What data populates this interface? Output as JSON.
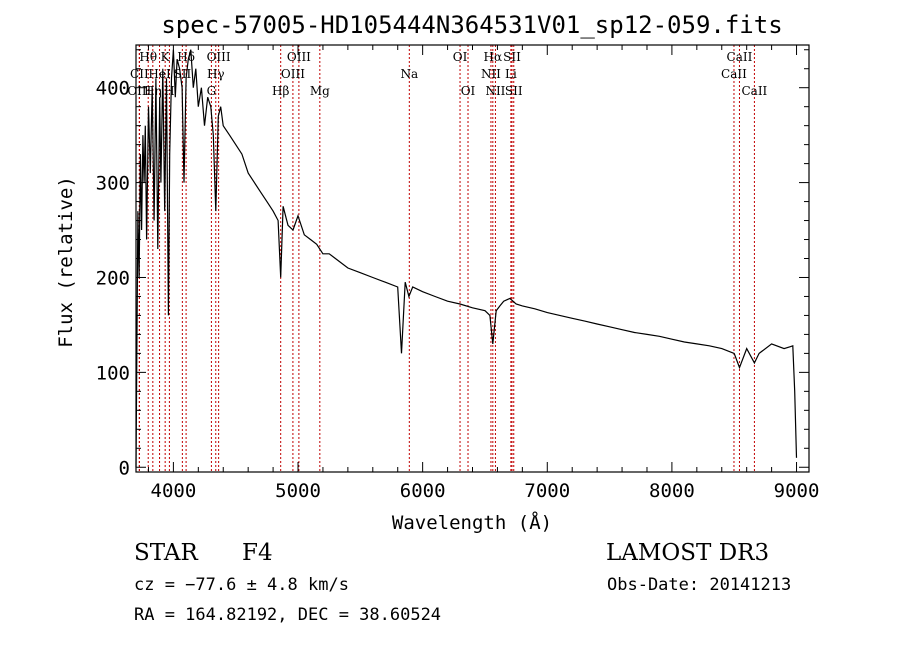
{
  "chart_data": {
    "type": "line",
    "title": "spec-57005-HD105444N364531V01_sp12-059.fits",
    "xlabel": "Wavelength (Å)",
    "ylabel": "Flux (relative)",
    "xlim": [
      3700,
      9100
    ],
    "ylim": [
      -5,
      445
    ],
    "x_ticks": [
      4000,
      5000,
      6000,
      7000,
      8000,
      9000
    ],
    "y_ticks": [
      0,
      100,
      200,
      300,
      400
    ],
    "series": [
      {
        "name": "flux",
        "x": [
          3700,
          3715,
          3725,
          3735,
          3745,
          3755,
          3765,
          3775,
          3785,
          3800,
          3815,
          3830,
          3845,
          3860,
          3875,
          3890,
          3900,
          3915,
          3930,
          3945,
          3960,
          3970,
          3985,
          4000,
          4015,
          4030,
          4050,
          4070,
          4085,
          4102,
          4120,
          4140,
          4160,
          4180,
          4200,
          4225,
          4250,
          4275,
          4300,
          4320,
          4340,
          4360,
          4380,
          4400,
          4450,
          4500,
          4550,
          4600,
          4650,
          4700,
          4750,
          4800,
          4840,
          4861,
          4880,
          4920,
          4960,
          5000,
          5050,
          5100,
          5150,
          5200,
          5250,
          5300,
          5400,
          5500,
          5600,
          5700,
          5800,
          5830,
          5860,
          5890,
          5920,
          6000,
          6100,
          6200,
          6300,
          6400,
          6500,
          6540,
          6563,
          6590,
          6620,
          6650,
          6700,
          6750,
          6800,
          6900,
          7000,
          7100,
          7200,
          7300,
          7400,
          7500,
          7600,
          7700,
          7800,
          7900,
          8000,
          8100,
          8200,
          8300,
          8400,
          8500,
          8542,
          8600,
          8662,
          8700,
          8800,
          8900,
          8950,
          8970,
          8985,
          9000
        ],
        "y": [
          0,
          270,
          200,
          330,
          250,
          350,
          300,
          360,
          240,
          380,
          310,
          400,
          260,
          410,
          230,
          390,
          300,
          420,
          270,
          410,
          160,
          330,
          410,
          440,
          390,
          430,
          420,
          400,
          300,
          410,
          430,
          440,
          400,
          420,
          380,
          400,
          360,
          390,
          380,
          350,
          270,
          370,
          380,
          360,
          350,
          340,
          330,
          310,
          300,
          290,
          280,
          270,
          260,
          200,
          275,
          255,
          250,
          265,
          245,
          240,
          235,
          225,
          225,
          220,
          210,
          205,
          200,
          195,
          190,
          120,
          195,
          180,
          190,
          185,
          180,
          175,
          172,
          168,
          165,
          160,
          130,
          165,
          170,
          175,
          178,
          172,
          170,
          167,
          163,
          160,
          157,
          154,
          151,
          148,
          145,
          142,
          140,
          138,
          135,
          132,
          130,
          128,
          125,
          120,
          105,
          125,
          110,
          120,
          130,
          125,
          127,
          128,
          80,
          10
        ]
      }
    ],
    "spectral_lines": [
      {
        "label": "Hθ",
        "x": 3798,
        "row": 0
      },
      {
        "label": "K",
        "x": 3934,
        "row": 0
      },
      {
        "label": "Hδ",
        "x": 4102,
        "row": 0
      },
      {
        "label": "OIII",
        "x": 4363,
        "row": 0
      },
      {
        "label": "OIII",
        "x": 5007,
        "row": 0
      },
      {
        "label": "OI",
        "x": 6300,
        "row": 0
      },
      {
        "label": "Hα",
        "x": 6563,
        "row": 0
      },
      {
        "label": "SII",
        "x": 6717,
        "row": 0
      },
      {
        "label": "CaII",
        "x": 8542,
        "row": 0
      },
      {
        "label": "CII",
        "x": 3727,
        "row": 1
      },
      {
        "label": "HeI",
        "x": 3889,
        "row": 1
      },
      {
        "label": "SII",
        "x": 4072,
        "row": 1
      },
      {
        "label": "Hγ",
        "x": 4340,
        "row": 1
      },
      {
        "label": "OIII",
        "x": 4959,
        "row": 1
      },
      {
        "label": "Na",
        "x": 5893,
        "row": 1
      },
      {
        "label": "NII",
        "x": 6548,
        "row": 1
      },
      {
        "label": "Li",
        "x": 6708,
        "row": 1
      },
      {
        "label": "CaII",
        "x": 8498,
        "row": 1
      },
      {
        "label": "OIII",
        "x": 3727,
        "row": 2
      },
      {
        "label": "Hη",
        "x": 3835,
        "row": 2
      },
      {
        "label": "H",
        "x": 3968,
        "row": 2
      },
      {
        "label": "G",
        "x": 4305,
        "row": 2
      },
      {
        "label": "Hβ",
        "x": 4861,
        "row": 2
      },
      {
        "label": "Mg",
        "x": 5175,
        "row": 2
      },
      {
        "label": "OI",
        "x": 6364,
        "row": 2
      },
      {
        "label": "NII",
        "x": 6584,
        "row": 2
      },
      {
        "label": "SII",
        "x": 6731,
        "row": 2
      },
      {
        "label": "CaII",
        "x": 8662,
        "row": 2
      }
    ]
  },
  "info": {
    "object_class": "STAR",
    "subclass": "F4",
    "survey": "LAMOST DR3",
    "redshift": "cz = −77.6 ± 4.8 km/s",
    "obs_date": "Obs-Date: 20141213",
    "coords": "RA = 164.82192, DEC =  38.60524"
  }
}
